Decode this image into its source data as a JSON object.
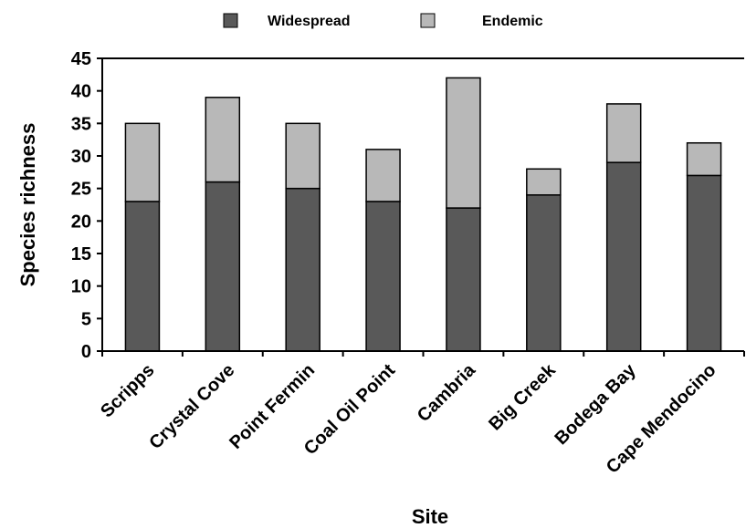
{
  "chart_data": {
    "type": "bar",
    "stacked": true,
    "xlabel": "Site",
    "ylabel": "Species richness",
    "ylim": [
      0,
      45
    ],
    "yticks": [
      0,
      5,
      10,
      15,
      20,
      25,
      30,
      35,
      40,
      45
    ],
    "categories": [
      "Scripps",
      "Crystal Cove",
      "Point Fermin",
      "Coal Oil Point",
      "Cambria",
      "Big Creek",
      "Bodega Bay",
      "Cape Mendocino"
    ],
    "series": [
      {
        "name": "Widespread",
        "color": "#595959",
        "values": [
          23,
          26,
          25,
          23,
          22,
          24,
          29,
          27
        ]
      },
      {
        "name": "Endemic",
        "color": "#b8b8b8",
        "values": [
          12,
          13,
          10,
          8,
          20,
          4,
          9,
          5
        ]
      }
    ],
    "legend_position": "top",
    "grid": false
  }
}
